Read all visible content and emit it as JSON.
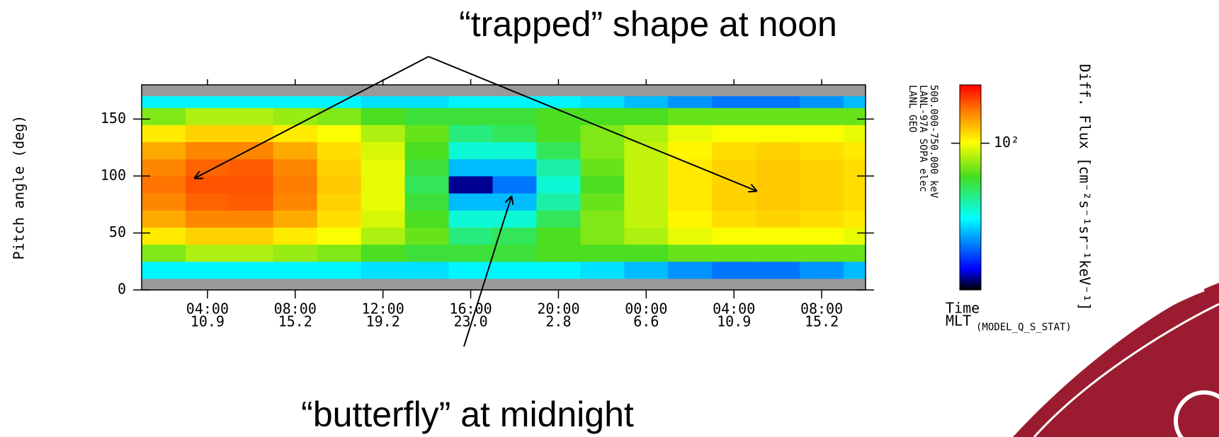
{
  "chart_data": {
    "type": "heatmap",
    "annotations": [
      "“trapped” shape at noon",
      "“butterfly” at midnight"
    ],
    "ylabel": "Pitch angle (deg)",
    "xlabel": "Time",
    "xlabel2": "MLT",
    "xlabel2_sub": "(MODEL_Q_S_STAT)",
    "instrument": [
      "LANL GEO",
      "LANL-97A SOPA elec",
      "500.000-750.000 keV"
    ],
    "colorbar_label": "Diff. Flux [cm⁻²s⁻¹sr⁻¹keV⁻¹]",
    "clim": [
      10,
      250
    ],
    "clog": true,
    "cticks": [
      {
        "value": 100,
        "label": "10²"
      }
    ],
    "missing_color": "#999999",
    "xlim": [
      1,
      34
    ],
    "ylim": [
      0,
      180
    ],
    "xticks": [
      {
        "value": 4,
        "label": "04:00"
      },
      {
        "value": 8,
        "label": "08:00"
      },
      {
        "value": 12,
        "label": "12:00"
      },
      {
        "value": 16,
        "label": "16:00"
      },
      {
        "value": 20,
        "label": "20:00"
      },
      {
        "value": 24,
        "label": "00:00"
      },
      {
        "value": 28,
        "label": "04:00"
      },
      {
        "value": 32,
        "label": "08:00"
      }
    ],
    "mlt_labels": [
      "10.9",
      "15.2",
      "19.2",
      "23.0",
      "2.8",
      "6.6",
      "10.9",
      "15.2"
    ],
    "yticks": [
      0,
      50,
      100,
      150
    ],
    "x_edges": [
      1,
      3,
      5,
      7,
      9,
      11,
      13,
      15,
      17,
      19,
      21,
      23,
      25,
      27,
      29,
      31,
      33,
      34
    ],
    "y_edges": [
      0,
      10,
      25,
      40,
      55,
      70,
      85,
      100,
      115,
      130,
      145,
      160,
      170,
      180
    ],
    "values": [
      [
        null,
        null,
        null,
        null,
        null,
        null,
        null,
        null,
        null,
        null,
        null,
        null,
        null,
        null,
        null,
        null,
        null
      ],
      [
        30,
        30,
        30,
        30,
        30,
        28,
        28,
        30,
        30,
        30,
        28,
        25,
        22,
        20,
        20,
        22,
        25
      ],
      [
        70,
        80,
        80,
        75,
        70,
        60,
        55,
        55,
        55,
        60,
        60,
        60,
        65,
        65,
        65,
        65,
        65
      ],
      [
        110,
        120,
        120,
        110,
        100,
        80,
        65,
        45,
        50,
        60,
        70,
        80,
        95,
        100,
        100,
        100,
        95
      ],
      [
        140,
        160,
        160,
        140,
        115,
        90,
        60,
        35,
        35,
        50,
        70,
        85,
        105,
        115,
        120,
        115,
        110
      ],
      [
        160,
        180,
        185,
        160,
        120,
        95,
        55,
        25,
        25,
        40,
        65,
        85,
        110,
        120,
        125,
        120,
        115
      ],
      [
        170,
        190,
        190,
        165,
        125,
        95,
        50,
        12,
        20,
        35,
        60,
        85,
        110,
        120,
        125,
        120,
        115
      ],
      [
        160,
        180,
        185,
        160,
        120,
        95,
        55,
        25,
        25,
        40,
        65,
        85,
        110,
        120,
        125,
        120,
        115
      ],
      [
        140,
        160,
        160,
        140,
        115,
        90,
        60,
        35,
        35,
        50,
        70,
        85,
        105,
        115,
        120,
        115,
        110
      ],
      [
        110,
        120,
        120,
        110,
        100,
        80,
        65,
        45,
        50,
        60,
        70,
        80,
        95,
        100,
        100,
        100,
        95
      ],
      [
        70,
        80,
        80,
        75,
        70,
        60,
        55,
        55,
        55,
        60,
        60,
        60,
        65,
        65,
        65,
        65,
        65
      ],
      [
        30,
        30,
        30,
        30,
        30,
        28,
        28,
        30,
        30,
        30,
        28,
        25,
        22,
        20,
        20,
        22,
        25
      ],
      [
        null,
        null,
        null,
        null,
        null,
        null,
        null,
        null,
        null,
        null,
        null,
        null,
        null,
        null,
        null,
        null,
        null
      ]
    ]
  }
}
